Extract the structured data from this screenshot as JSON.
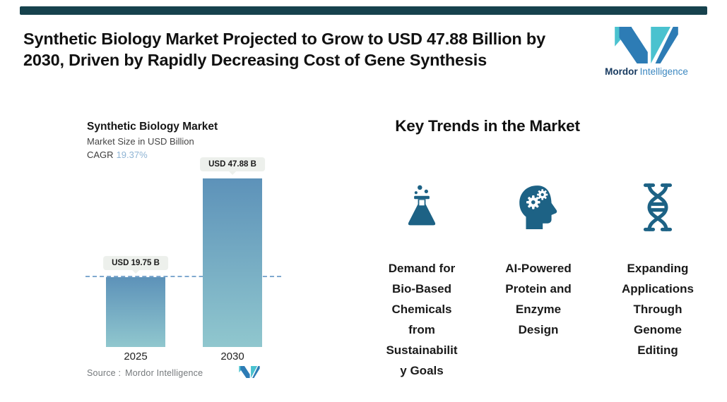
{
  "header": {
    "title": "Synthetic Biology Market Projected to Grow to USD 47.88 Billion by\n2030, Driven by Rapidly Decreasing Cost of Gene Synthesis"
  },
  "logo": {
    "word_primary": "Mordor",
    "word_secondary": "Intelligence",
    "blue": "#2d7cb5",
    "teal": "#4ac2cf"
  },
  "chart": {
    "title": "Synthetic Biology Market",
    "subtitle": "Market Size in USD Billion",
    "cagr_label": "CAGR",
    "cagr_value": "19.37%",
    "source_label": "Source :",
    "source_value": "Mordor Intelligence"
  },
  "chart_data": {
    "type": "bar",
    "title": "Synthetic Biology Market",
    "ylabel": "Market Size in USD Billion",
    "unit": "USD Billion",
    "categories": [
      "2025",
      "2030"
    ],
    "values": [
      19.75,
      47.88
    ],
    "value_labels": [
      "USD 19.75 B",
      "USD 47.88 B"
    ],
    "cagr_percent": 19.37,
    "ylim": [
      0,
      50
    ],
    "grid": false,
    "legend": "none",
    "baseline_marker": {
      "type": "dashed-line",
      "at_value": 19.75,
      "color": "#7fa9cf"
    },
    "bar_gradient_top": "#5d92b9",
    "bar_gradient_bottom": "#90c7ce"
  },
  "trends": {
    "heading": "Key Trends in the Market",
    "icon_color": "#1d6285",
    "items": [
      {
        "icon": "flask-icon",
        "label": "Demand for\nBio-Based\nChemicals\nfrom\nSustainabilit\ny Goals"
      },
      {
        "icon": "ai-head-gears-icon",
        "label": "AI-Powered\nProtein and\nEnzyme\nDesign"
      },
      {
        "icon": "dna-helix-icon",
        "label": "Expanding\nApplications\nThrough\nGenome\nEditing"
      }
    ]
  },
  "colors": {
    "top_bar": "#16424d",
    "accent_cagr": "#8fb4d4",
    "badge_bg": "#edf0ec",
    "icon_dark_teal": "#1d6285"
  }
}
